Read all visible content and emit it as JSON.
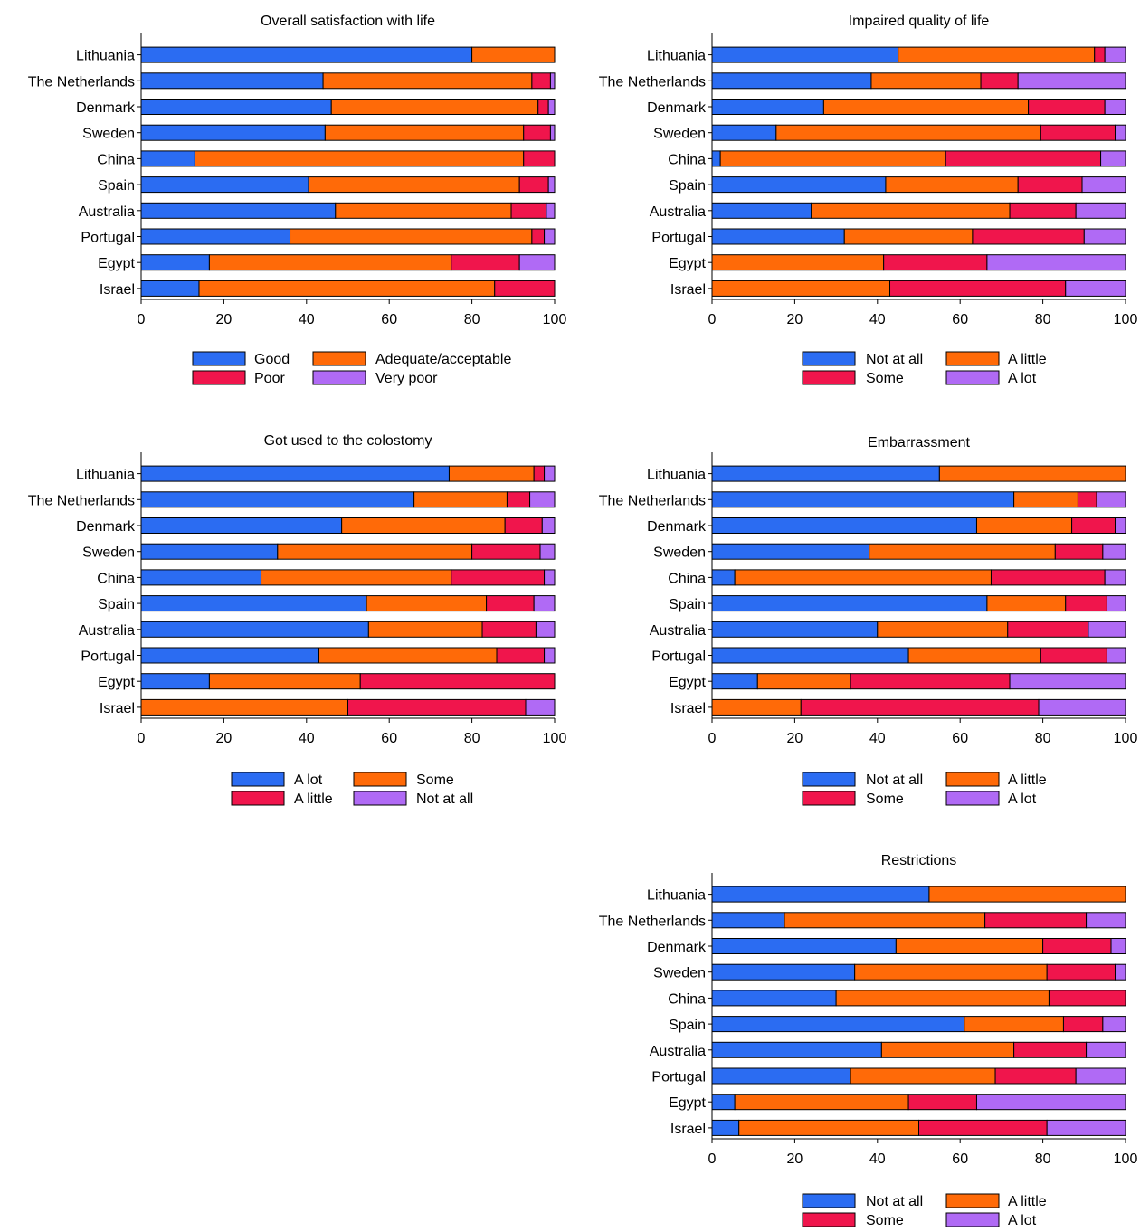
{
  "colors": {
    "blue": "#2b6cf2",
    "orange": "#ff6a08",
    "red": "#f0154c",
    "violet": "#b06af5"
  },
  "chart_data": [
    {
      "id": "satisfaction",
      "type": "bar",
      "orientation": "horizontal",
      "stacked": true,
      "title": "Overall satisfaction with life",
      "xlim": [
        0,
        100
      ],
      "xticks": [
        0,
        20,
        40,
        60,
        80,
        100
      ],
      "categories": [
        "Lithuania",
        "The Netherlands",
        "Denmark",
        "Sweden",
        "China",
        "Spain",
        "Australia",
        "Portugal",
        "Egypt",
        "Israel"
      ],
      "series": [
        {
          "name": "Good",
          "color": "blue",
          "values": [
            80,
            44,
            46,
            44.5,
            13,
            40.5,
            47,
            36,
            16.5,
            14
          ]
        },
        {
          "name": "Adequate/acceptable",
          "color": "orange",
          "values": [
            20,
            50.5,
            50,
            48,
            79.5,
            51,
            42.5,
            58.5,
            58.5,
            71.5
          ]
        },
        {
          "name": "Poor",
          "color": "red",
          "values": [
            0,
            4.5,
            2.5,
            6.5,
            7.5,
            7,
            8.5,
            3,
            16.5,
            14.5
          ]
        },
        {
          "name": "Very poor",
          "color": "violet",
          "values": [
            0,
            1,
            1.5,
            1,
            0,
            1.5,
            2,
            2.5,
            8.5,
            0
          ]
        }
      ],
      "legend": [
        "Good",
        "Adequate/acceptable",
        "Poor",
        "Very poor"
      ]
    },
    {
      "id": "impaired",
      "type": "bar",
      "orientation": "horizontal",
      "stacked": true,
      "title": "Impaired quality of life",
      "xlim": [
        0,
        100
      ],
      "xticks": [
        0,
        20,
        40,
        60,
        80,
        100
      ],
      "categories": [
        "Lithuania",
        "The Netherlands",
        "Denmark",
        "Sweden",
        "China",
        "Spain",
        "Australia",
        "Portugal",
        "Egypt",
        "Israel"
      ],
      "series": [
        {
          "name": "Not at all",
          "color": "blue",
          "values": [
            45,
            38.5,
            27,
            15.5,
            2,
            42,
            24,
            32,
            0,
            0
          ]
        },
        {
          "name": "A little",
          "color": "orange",
          "values": [
            47.5,
            26.5,
            49.5,
            64,
            54.5,
            32,
            48,
            31,
            41.5,
            43
          ]
        },
        {
          "name": "Some",
          "color": "red",
          "values": [
            2.5,
            9,
            18.5,
            18,
            37.5,
            15.5,
            16,
            27,
            25,
            42.5
          ]
        },
        {
          "name": "A lot",
          "color": "violet",
          "values": [
            5,
            26,
            5,
            2.5,
            6,
            10.5,
            12,
            10,
            33.5,
            14.5
          ]
        }
      ],
      "legend": [
        "Not at all",
        "A little",
        "Some",
        "A lot"
      ]
    },
    {
      "id": "colostomy",
      "type": "bar",
      "orientation": "horizontal",
      "stacked": true,
      "title": "Got used to the colostomy",
      "xlim": [
        0,
        100
      ],
      "xticks": [
        0,
        20,
        40,
        60,
        80,
        100
      ],
      "categories": [
        "Lithuania",
        "The Netherlands",
        "Denmark",
        "Sweden",
        "China",
        "Spain",
        "Australia",
        "Portugal",
        "Egypt",
        "Israel"
      ],
      "series": [
        {
          "name": "A lot",
          "color": "blue",
          "values": [
            74.5,
            66,
            48.5,
            33,
            29,
            54.5,
            55,
            43,
            16.5,
            0
          ]
        },
        {
          "name": "Some",
          "color": "orange",
          "values": [
            20.5,
            22.5,
            39.5,
            47,
            46,
            29,
            27.5,
            43,
            36.5,
            50
          ]
        },
        {
          "name": "A little",
          "color": "red",
          "values": [
            2.5,
            5.5,
            9,
            16.5,
            22.5,
            11.5,
            13,
            11.5,
            47,
            43
          ]
        },
        {
          "name": "Not at all",
          "color": "violet",
          "values": [
            2.5,
            6,
            3,
            3.5,
            2.5,
            5,
            4.5,
            2.5,
            0,
            7
          ]
        }
      ],
      "legend": [
        "A lot",
        "Some",
        "A little",
        "Not at all"
      ]
    },
    {
      "id": "embarrassment",
      "type": "bar",
      "orientation": "horizontal",
      "stacked": true,
      "title": "Embarrassment",
      "xlim": [
        0,
        100
      ],
      "xticks": [
        0,
        20,
        40,
        60,
        80,
        100
      ],
      "categories": [
        "Lithuania",
        "The Netherlands",
        "Denmark",
        "Sweden",
        "China",
        "Spain",
        "Australia",
        "Portugal",
        "Egypt",
        "Israel"
      ],
      "series": [
        {
          "name": "Not at all",
          "color": "blue",
          "values": [
            55,
            73,
            64,
            38,
            5.5,
            66.5,
            40,
            47.5,
            11,
            0
          ]
        },
        {
          "name": "A little",
          "color": "orange",
          "values": [
            45,
            15.5,
            23,
            45,
            62,
            19,
            31.5,
            32,
            22.5,
            21.5
          ]
        },
        {
          "name": "Some",
          "color": "red",
          "values": [
            0,
            4.5,
            10.5,
            11.5,
            27.5,
            10,
            19.5,
            16,
            38.5,
            57.5
          ]
        },
        {
          "name": "A lot",
          "color": "violet",
          "values": [
            0,
            7,
            2.5,
            5.5,
            5,
            4.5,
            9,
            4.5,
            28,
            21
          ]
        }
      ],
      "legend": [
        "Not at all",
        "A little",
        "Some",
        "A lot"
      ]
    },
    {
      "id": "restrictions",
      "type": "bar",
      "orientation": "horizontal",
      "stacked": true,
      "title": "Restrictions",
      "xlim": [
        0,
        100
      ],
      "xticks": [
        0,
        20,
        40,
        60,
        80,
        100
      ],
      "categories": [
        "Lithuania",
        "The Netherlands",
        "Denmark",
        "Sweden",
        "China",
        "Spain",
        "Australia",
        "Portugal",
        "Egypt",
        "Israel"
      ],
      "series": [
        {
          "name": "Not at all",
          "color": "blue",
          "values": [
            52.5,
            17.5,
            44.5,
            34.5,
            30,
            61,
            41,
            33.5,
            5.5,
            6.5
          ]
        },
        {
          "name": "A little",
          "color": "orange",
          "values": [
            47.5,
            48.5,
            35.5,
            46.5,
            51.5,
            24,
            32,
            35,
            42,
            43.5
          ]
        },
        {
          "name": "Some",
          "color": "red",
          "values": [
            0,
            24.5,
            16.5,
            16.5,
            18.5,
            9.5,
            17.5,
            19.5,
            16.5,
            31
          ]
        },
        {
          "name": "A lot",
          "color": "violet",
          "values": [
            0,
            9.5,
            3.5,
            2.5,
            0,
            5.5,
            9.5,
            12,
            36,
            19
          ]
        }
      ],
      "legend": [
        "Not at all",
        "A little",
        "Some",
        "A lot"
      ]
    }
  ]
}
